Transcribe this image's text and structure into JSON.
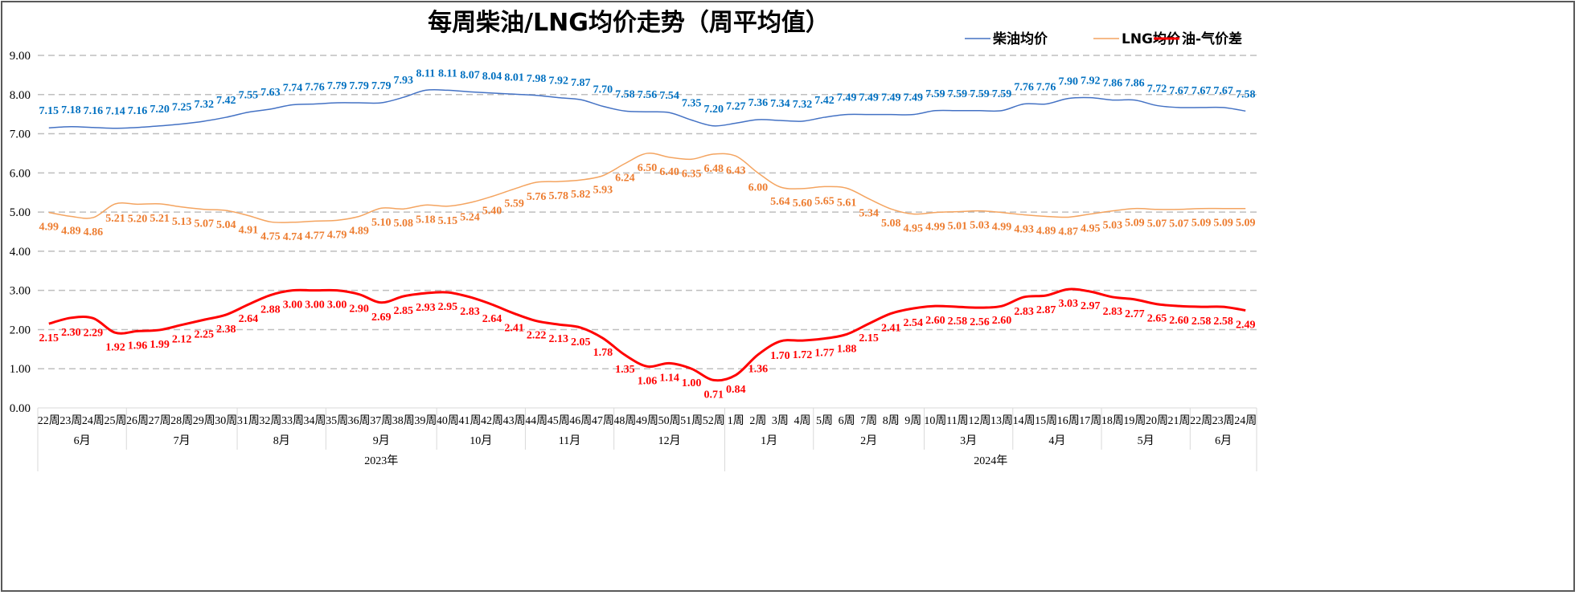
{
  "chart_data": {
    "type": "line",
    "title": "每周柴油/LNG均价走势（周平均值）",
    "xlabel": "",
    "ylabel": "",
    "ylim": [
      0,
      9
    ],
    "yticks": [
      "0.00",
      "1.00",
      "2.00",
      "3.00",
      "4.00",
      "5.00",
      "6.00",
      "7.00",
      "8.00",
      "9.00"
    ],
    "grid": true,
    "legend_position": "top-right",
    "categories": [
      "22周",
      "23周",
      "24周",
      "25周",
      "26周",
      "27周",
      "28周",
      "29周",
      "30周",
      "31周",
      "32周",
      "33周",
      "34周",
      "35周",
      "36周",
      "37周",
      "38周",
      "39周",
      "40周",
      "41周",
      "42周",
      "43周",
      "44周",
      "45周",
      "46周",
      "47周",
      "48周",
      "49周",
      "50周",
      "51周",
      "52周",
      "1周",
      "2周",
      "3周",
      "4周",
      "5周",
      "6周",
      "7周",
      "8周",
      "9周",
      "10周",
      "11周",
      "12周",
      "13周",
      "14周",
      "15周",
      "16周",
      "17周",
      "18周",
      "19周",
      "20周",
      "21周",
      "22周",
      "23周",
      "24周"
    ],
    "months": [
      {
        "label": "6月",
        "count": 4
      },
      {
        "label": "7月",
        "count": 5
      },
      {
        "label": "8月",
        "count": 4
      },
      {
        "label": "9月",
        "count": 5
      },
      {
        "label": "10月",
        "count": 4
      },
      {
        "label": "11月",
        "count": 4
      },
      {
        "label": "12月",
        "count": 5
      },
      {
        "label": "1月",
        "count": 4
      },
      {
        "label": "2月",
        "count": 5
      },
      {
        "label": "3月",
        "count": 4
      },
      {
        "label": "4月",
        "count": 4
      },
      {
        "label": "5月",
        "count": 4
      },
      {
        "label": "6月",
        "count": 3
      }
    ],
    "years": [
      {
        "label": "2023年",
        "count": 31
      },
      {
        "label": "2024年",
        "count": 24
      }
    ],
    "series": [
      {
        "name": "柴油均价",
        "color": "#4472C4",
        "label_color": "#0070C0",
        "label_pos": "above",
        "width": 1.5,
        "values": [
          7.15,
          7.18,
          7.16,
          7.14,
          7.16,
          7.2,
          7.25,
          7.32,
          7.42,
          7.55,
          7.63,
          7.74,
          7.76,
          7.79,
          7.79,
          7.79,
          7.93,
          8.11,
          8.11,
          8.07,
          8.04,
          8.01,
          7.98,
          7.92,
          7.87,
          7.7,
          7.58,
          7.56,
          7.54,
          7.35,
          7.2,
          7.27,
          7.36,
          7.34,
          7.32,
          7.42,
          7.49,
          7.49,
          7.49,
          7.49,
          7.59,
          7.59,
          7.59,
          7.59,
          7.76,
          7.76,
          7.9,
          7.92,
          7.86,
          7.86,
          7.72,
          7.67,
          7.67,
          7.67,
          7.58
        ]
      },
      {
        "name": "LNG均价",
        "color": "#F4A460",
        "label_color": "#ED7D31",
        "label_pos": "below",
        "width": 1.5,
        "values": [
          4.99,
          4.89,
          4.86,
          5.21,
          5.2,
          5.21,
          5.13,
          5.07,
          5.04,
          4.91,
          4.75,
          4.74,
          4.77,
          4.79,
          4.89,
          5.1,
          5.08,
          5.18,
          5.15,
          5.24,
          5.4,
          5.59,
          5.76,
          5.78,
          5.82,
          5.93,
          6.24,
          6.5,
          6.4,
          6.35,
          6.48,
          6.43,
          6.0,
          5.64,
          5.6,
          5.65,
          5.61,
          5.34,
          5.08,
          4.95,
          4.99,
          5.01,
          5.03,
          4.99,
          4.93,
          4.89,
          4.87,
          4.95,
          5.03,
          5.09,
          5.07,
          5.07,
          5.09,
          5.09,
          5.09
        ]
      },
      {
        "name": "油-气价差",
        "color": "#FF0000",
        "label_color": "#FF0000",
        "label_pos": "below",
        "width": 3,
        "values": [
          2.15,
          2.3,
          2.29,
          1.92,
          1.96,
          1.99,
          2.12,
          2.25,
          2.38,
          2.64,
          2.88,
          3.0,
          3.0,
          3.0,
          2.9,
          2.69,
          2.85,
          2.93,
          2.95,
          2.83,
          2.64,
          2.41,
          2.22,
          2.13,
          2.05,
          1.78,
          1.35,
          1.06,
          1.14,
          1.0,
          0.71,
          0.84,
          1.36,
          1.7,
          1.72,
          1.77,
          1.88,
          2.15,
          2.41,
          2.54,
          2.6,
          2.58,
          2.56,
          2.6,
          2.83,
          2.87,
          3.03,
          2.97,
          2.83,
          2.77,
          2.65,
          2.6,
          2.58,
          2.58,
          2.49
        ]
      }
    ]
  }
}
